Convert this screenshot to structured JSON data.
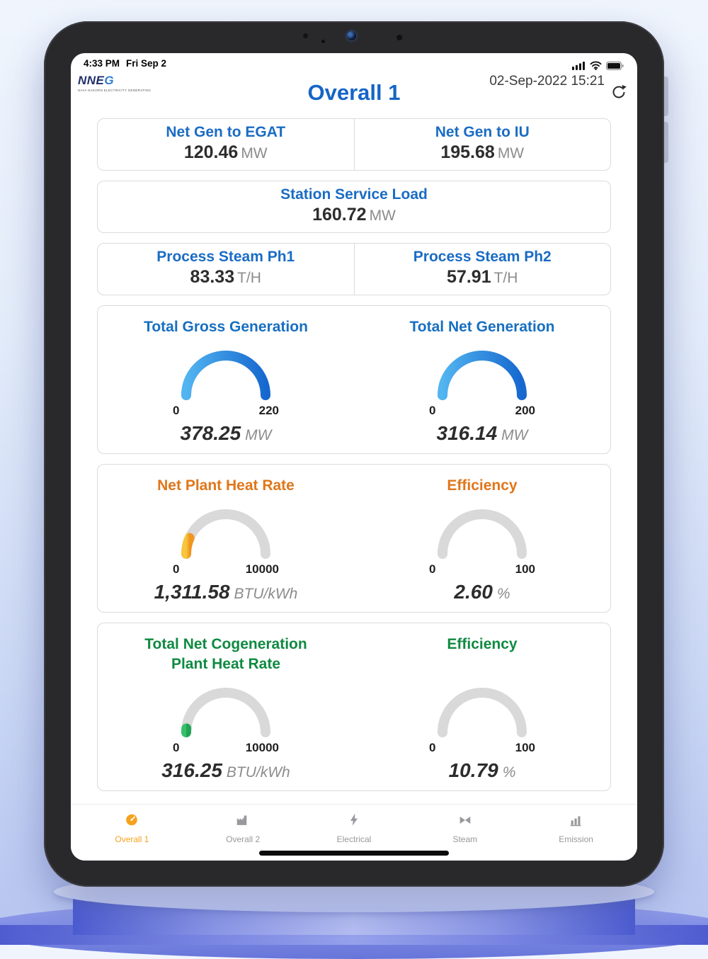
{
  "status_bar": {
    "time": "4:33 PM",
    "date": "Fri Sep 2",
    "icons": [
      "cellular-signal-icon",
      "wifi-icon",
      "battery-icon"
    ]
  },
  "header": {
    "title": "Overall 1",
    "datetime": "02-Sep-2022 15:21",
    "logo": {
      "part1": "NNE",
      "part2": "G",
      "sub": "NAVA NAKORN ELECTRICITY GENERATING"
    }
  },
  "stats": [
    {
      "label": "Net Gen to EGAT",
      "value": "120.46",
      "unit": "MW"
    },
    {
      "label": "Net Gen to IU",
      "value": "195.68",
      "unit": "MW"
    },
    {
      "label": "Station Service Load",
      "value": "160.72",
      "unit": "MW"
    },
    {
      "label": "Process Steam Ph1",
      "value": "83.33",
      "unit": "T/H"
    },
    {
      "label": "Process Steam Ph2",
      "value": "57.91",
      "unit": "T/H"
    }
  ],
  "chart_data": {
    "type": "gauge",
    "gauges": [
      {
        "title": "Total Gross Generation",
        "min": 0,
        "max": 220,
        "value": 378.25,
        "display_value": "378.25",
        "unit": "MW",
        "title_color": "#176fc1",
        "fill_start": "#52b4f0",
        "fill_end": "#1668cf"
      },
      {
        "title": "Total Net Generation",
        "min": 0,
        "max": 200,
        "value": 316.14,
        "display_value": "316.14",
        "unit": "MW",
        "title_color": "#176fc1",
        "fill_start": "#52b4f0",
        "fill_end": "#1668cf"
      },
      {
        "title": "Net Plant Heat Rate",
        "min": 0,
        "max": 10000,
        "value": 1311.58,
        "display_value": "1,311.58",
        "unit": "BTU/kWh",
        "title_color": "#e0761a",
        "fill_start": "#f7c63c",
        "fill_end": "#f0951f"
      },
      {
        "title": "Efficiency",
        "min": 0,
        "max": 100,
        "value": 2.6,
        "display_value": "2.60",
        "unit": "%",
        "title_color": "#e0761a",
        "fill_start": "#d9d9d9",
        "fill_end": "#d9d9d9"
      },
      {
        "title": "Total Net Cogeneration Plant Heat Rate",
        "min": 0,
        "max": 10000,
        "value": 316.25,
        "display_value": "316.25",
        "unit": "BTU/kWh",
        "title_color": "#0f8a41",
        "fill_start": "#35c06a",
        "fill_end": "#21a455"
      },
      {
        "title": "Efficiency",
        "min": 0,
        "max": 100,
        "value": 10.79,
        "display_value": "10.79",
        "unit": "%",
        "title_color": "#0f8a41",
        "fill_start": "#d9d9d9",
        "fill_end": "#d9d9d9"
      }
    ],
    "track_color": "#d9d9d9"
  },
  "tab_bar": {
    "tabs": [
      {
        "label": "Overall 1",
        "icon": "gauge-icon",
        "active": true
      },
      {
        "label": "Overall 2",
        "icon": "factory-icon",
        "active": false
      },
      {
        "label": "Electrical",
        "icon": "lightning-icon",
        "active": false
      },
      {
        "label": "Steam",
        "icon": "valve-icon",
        "active": false
      },
      {
        "label": "Emission",
        "icon": "emission-icon",
        "active": false
      }
    ],
    "active_color": "#f6a21d",
    "inactive_color": "#98989d"
  },
  "colors": {
    "title_blue": "#1565c6",
    "stat_label_blue": "#1a6cc4",
    "gauge_blue": "#2b9af0",
    "heat_rate_orange": "#e0761a",
    "cogen_green": "#0f8a41"
  }
}
